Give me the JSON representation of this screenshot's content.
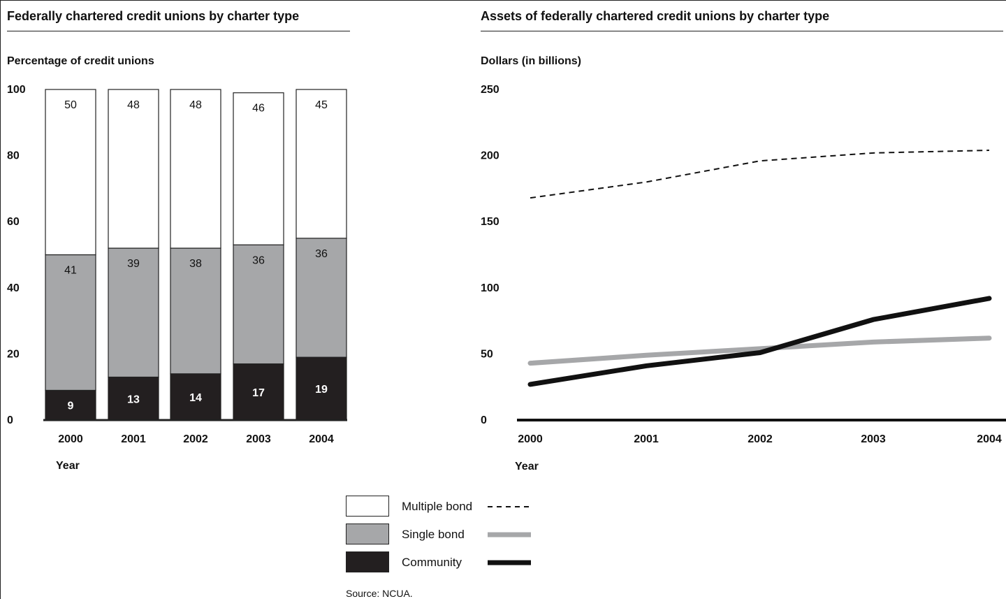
{
  "left_chart": {
    "title": "Federally chartered credit unions by charter type",
    "ylabel": "Percentage of credit unions",
    "xlabel": "Year"
  },
  "right_chart": {
    "title": "Assets of federally chartered credit unions by charter type",
    "ylabel": "Dollars (in billions)",
    "xlabel": "Year"
  },
  "legend": {
    "items": [
      {
        "label": "Multiple bond",
        "swatch_color": "#ffffff",
        "line_style": "dashed"
      },
      {
        "label": "Single bond",
        "swatch_color": "#a6a7a9",
        "line_style": "solid-gray"
      },
      {
        "label": "Community",
        "swatch_color": "#231f20",
        "line_style": "solid-black"
      }
    ]
  },
  "source": "Source: NCUA.",
  "colors": {
    "multiple": "#ffffff",
    "single": "#a6a7a9",
    "community": "#231f20"
  },
  "chart_data": [
    {
      "type": "bar",
      "stacked": true,
      "title": "Federally chartered credit unions by charter type",
      "xlabel": "Year",
      "ylabel": "Percentage of credit unions",
      "ylim": [
        0,
        100
      ],
      "yticks": [
        0,
        20,
        40,
        60,
        80,
        100
      ],
      "categories": [
        "2000",
        "2001",
        "2002",
        "2003",
        "2004"
      ],
      "series": [
        {
          "name": "Community",
          "values": [
            9,
            13,
            14,
            17,
            19
          ]
        },
        {
          "name": "Single bond",
          "values": [
            41,
            39,
            38,
            36,
            36
          ]
        },
        {
          "name": "Multiple bond",
          "values": [
            50,
            48,
            48,
            46,
            45
          ]
        }
      ],
      "grid": false
    },
    {
      "type": "line",
      "title": "Assets of federally chartered credit unions by charter type",
      "xlabel": "Year",
      "ylabel": "Dollars (in billions)",
      "ylim": [
        0,
        250
      ],
      "yticks": [
        0,
        50,
        100,
        150,
        200,
        250
      ],
      "x": [
        "2000",
        "2001",
        "2002",
        "2003",
        "2004"
      ],
      "series": [
        {
          "name": "Multiple bond",
          "values": [
            168,
            180,
            196,
            202,
            204
          ]
        },
        {
          "name": "Single bond",
          "values": [
            43,
            49,
            54,
            59,
            62
          ]
        },
        {
          "name": "Community",
          "values": [
            27,
            41,
            51,
            76,
            92
          ]
        }
      ],
      "grid": false
    }
  ]
}
